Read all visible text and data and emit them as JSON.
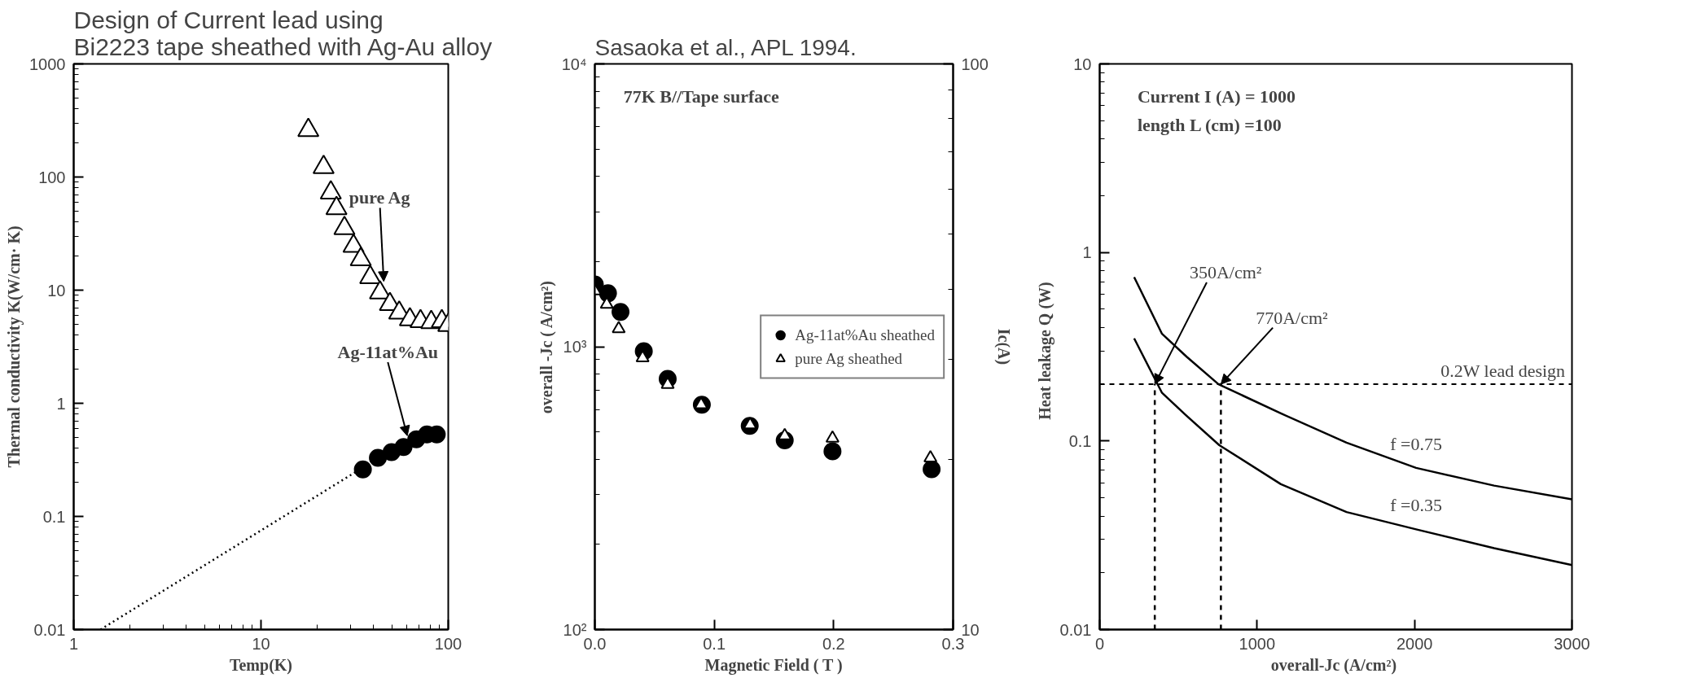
{
  "chart_data": [
    {
      "type": "scatter",
      "title": "Design of Current lead using\nBi2223 tape sheathed with Ag-Au alloy",
      "xlabel": "Temp(K)",
      "ylabel": "Thermal conductivity K(W/cm· K)",
      "log": "xy",
      "xlim": [
        1,
        100
      ],
      "ylim": [
        0.01,
        1000
      ],
      "xticks": [
        1,
        10,
        100
      ],
      "yticks": [
        0.01,
        0.1,
        1,
        10,
        100,
        1000
      ],
      "series": [
        {
          "name": "pure Ag",
          "color": "#000000",
          "marker": "triangle",
          "x": [
            17.9,
            21.6,
            23.6,
            25.3,
            27.9,
            31.2,
            34.1,
            38.3,
            43.2,
            48.8,
            54.7,
            62.4,
            71.1,
            81.1,
            92.4,
            100
          ],
          "values": [
            259,
            122,
            72.8,
            52.9,
            35.2,
            24.5,
            18.7,
            13.0,
            9.5,
            7.5,
            6.3,
            5.5,
            5.3,
            5.2,
            5.3,
            4.9
          ]
        },
        {
          "name": "Ag-11at%Au",
          "color": "#000000",
          "marker": "circle",
          "x": [
            35.0,
            42.1,
            49.8,
            57.7,
            67.5,
            76.9,
            86.8
          ],
          "values": [
            0.26,
            0.33,
            0.37,
            0.41,
            0.48,
            0.53,
            0.53
          ]
        },
        {
          "type": "line",
          "color": "#000000",
          "line_style": "dotted",
          "x": [
            1.39,
            32.4
          ],
          "values": [
            0.01,
            0.25
          ]
        }
      ]
    },
    {
      "type": "scatter",
      "subtitle": "Sasaoka et al., APL 1994.",
      "xlabel": "Magnetic Field ( T )",
      "ylabel": "overall -Jc ( A/cm²)",
      "y2label": "Ic(A)",
      "log": "y",
      "xlim": [
        0,
        0.3
      ],
      "ylim": [
        100,
        10000
      ],
      "y2lim": [
        10,
        100
      ],
      "xticks": [
        {
          "value": 0,
          "label": "0.0"
        },
        {
          "value": 0.1,
          "label": "0.1"
        },
        {
          "value": 0.2,
          "label": "0.2"
        },
        {
          "value": 0.3,
          "label": "0.3"
        }
      ],
      "yticks": [
        {
          "value": 100,
          "label": "10²"
        },
        {
          "value": 1000,
          "label": "10³"
        },
        {
          "value": 10000,
          "label": "10⁴"
        }
      ],
      "y2ticks": [
        10,
        100
      ],
      "legend": "right",
      "series": [
        {
          "name": "Ag-11at%Au sheathed",
          "color": "#000000",
          "marker": "circle",
          "x": [
            0.0,
            0.011,
            0.0215,
            0.041,
            0.061,
            0.0896,
            0.1297,
            0.159,
            0.199,
            0.282
          ],
          "values": [
            1660,
            1545,
            1327,
            964,
            770,
            624,
            525,
            467,
            427,
            369
          ]
        },
        {
          "name": "pure Ag sheathed",
          "color": "#000000",
          "marker": "triangle",
          "x": [
            0.0,
            0.01,
            0.02,
            0.04,
            0.061,
            0.089,
            0.13,
            0.159,
            0.199,
            0.281
          ],
          "values": [
            1574,
            1413,
            1157,
            914,
            735,
            624,
            530,
            484,
            475,
            404
          ]
        }
      ],
      "annotations": [
        "77K  B//Tape surface"
      ]
    },
    {
      "type": "line",
      "xlabel": "overall-Jc  (A/cm²)",
      "ylabel": "Heat leakage Q   (W)",
      "log": "y",
      "xlim": [
        0,
        3000
      ],
      "ylim": [
        0.01,
        10
      ],
      "xticks": [
        0,
        1000,
        2000,
        3000
      ],
      "yticks": [
        0.01,
        0.1,
        1,
        10
      ],
      "series": [
        {
          "name": "f =0.75",
          "color": "#000000",
          "x": [
            219,
            396,
            552,
            755,
            1151,
            1568,
            2010,
            2505,
            3000
          ],
          "values": [
            0.74,
            0.37,
            0.28,
            0.2,
            0.14,
            0.098,
            0.072,
            0.058,
            0.049
          ]
        },
        {
          "name": "f =0.35",
          "color": "#000000",
          "x": [
            219,
            396,
            552,
            760,
            1151,
            1568,
            2010,
            2505,
            3000
          ],
          "values": [
            0.35,
            0.18,
            0.136,
            0.095,
            0.059,
            0.042,
            0.034,
            0.027,
            0.022
          ]
        },
        {
          "color": "#000000",
          "line_style": "dashed",
          "x": [
            350,
            350
          ],
          "values": [
            0.01,
            0.2
          ]
        },
        {
          "color": "#000000",
          "line_style": "dashed",
          "x": [
            770,
            770
          ],
          "values": [
            0.01,
            0.2
          ]
        }
      ],
      "ref_lines": [
        {
          "axis": "y",
          "value": 0.2,
          "label": "0.2W lead design",
          "line_style": "dashed"
        }
      ],
      "annotations": [
        "Current  I (A) = 1000",
        "length   L (cm) =100",
        {
          "text": "350A/cm²",
          "x": 350,
          "y": 0.2
        },
        {
          "text": "770A/cm²",
          "x": 770,
          "y": 0.2
        }
      ]
    }
  ]
}
